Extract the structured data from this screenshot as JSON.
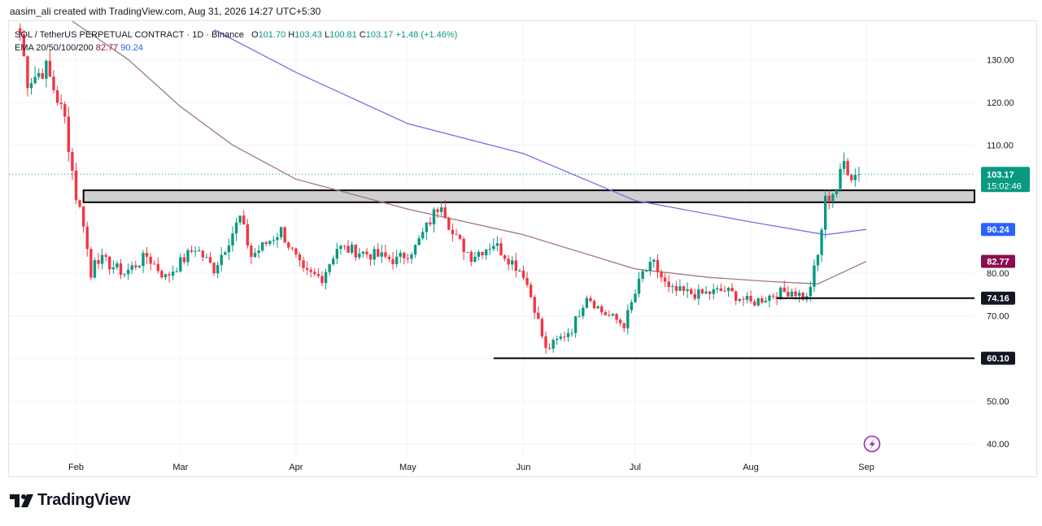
{
  "header": {
    "credit": "aasim_ali created with TradingView.com, Aug 31, 2026 14:27 UTC+5:30"
  },
  "legend": {
    "symbol": "SOL / TetherUS PERPETUAL CONTRACT · 1D · Binance",
    "open_label": "O",
    "open": "101.70",
    "high_label": "H",
    "high": "103.43",
    "low_label": "L",
    "low": "100.81",
    "close_label": "C",
    "close": "103.17",
    "change": "+1.48 (+1.46%)",
    "ema_label": "EMA 20/50/100/200",
    "ema_value_1": "82.77",
    "ema_value_2": "90.24"
  },
  "logo": {
    "text": "TradingView"
  },
  "colors": {
    "up": "#089981",
    "down": "#f23645",
    "ema_purple": "#7e6ee0",
    "ema_maroon": "#a07a7c",
    "zone_fill": "#cfcfcf",
    "level_line": "#000000"
  },
  "chart_data": {
    "type": "candlestick",
    "title": "SOL / TetherUS PERPETUAL CONTRACT · 1D · Binance",
    "x_tick_labels": [
      "Feb",
      "Mar",
      "Apr",
      "May",
      "Jun",
      "Jul",
      "Aug",
      "Sep"
    ],
    "x_ticks": [
      "2026-02-01",
      "2026-03-01",
      "2026-04-01",
      "2026-05-01",
      "2026-06-01",
      "2026-07-01",
      "2026-08-01",
      "2026-09-01"
    ],
    "x_range": [
      "2026-01-14",
      "2026-09-30"
    ],
    "y_ticks": [
      40,
      50,
      60,
      70,
      80,
      110,
      120,
      130
    ],
    "y_tick_labels": [
      "40.00",
      "50.00",
      "60.00",
      "70.00",
      "80.00",
      "110.00",
      "120.00",
      "130.00"
    ],
    "ylim": [
      37,
      139
    ],
    "grid": true,
    "last_price": 103.17,
    "last_price_label": "103.17",
    "countdown": "15:02:46",
    "series": [
      {
        "name": "SOL/USDT",
        "key_points": [
          [
            "2026-01-17",
            136
          ],
          [
            "2026-01-19",
            125
          ],
          [
            "2026-01-24",
            128
          ],
          [
            "2026-01-29",
            116
          ],
          [
            "2026-02-01",
            98
          ],
          [
            "2026-02-03",
            92
          ],
          [
            "2026-02-05",
            79
          ],
          [
            "2026-02-06",
            84
          ],
          [
            "2026-02-14",
            80
          ],
          [
            "2026-02-20",
            84
          ],
          [
            "2026-02-25",
            79
          ],
          [
            "2026-03-05",
            86
          ],
          [
            "2026-03-10",
            81
          ],
          [
            "2026-03-17",
            93
          ],
          [
            "2026-03-20",
            84
          ],
          [
            "2026-03-28",
            90
          ],
          [
            "2026-04-03",
            80
          ],
          [
            "2026-04-08",
            79
          ],
          [
            "2026-04-12",
            86
          ],
          [
            "2026-04-18",
            85
          ],
          [
            "2026-04-28",
            83
          ],
          [
            "2026-05-03",
            86
          ],
          [
            "2026-05-10",
            97
          ],
          [
            "2026-05-13",
            89
          ],
          [
            "2026-05-18",
            84
          ],
          [
            "2026-05-24",
            87
          ],
          [
            "2026-06-01",
            80
          ],
          [
            "2026-06-04",
            72
          ],
          [
            "2026-06-07",
            62
          ],
          [
            "2026-06-14",
            67
          ],
          [
            "2026-06-18",
            75
          ],
          [
            "2026-06-22",
            71
          ],
          [
            "2026-06-28",
            68
          ],
          [
            "2026-07-03",
            80
          ],
          [
            "2026-07-06",
            82
          ],
          [
            "2026-07-10",
            76
          ],
          [
            "2026-07-18",
            75
          ],
          [
            "2026-07-25",
            76
          ],
          [
            "2026-08-01",
            73
          ],
          [
            "2026-08-07",
            75
          ],
          [
            "2026-08-12",
            76
          ],
          [
            "2026-08-16",
            74
          ],
          [
            "2026-08-19",
            84
          ],
          [
            "2026-08-21",
            97
          ],
          [
            "2026-08-24",
            100
          ],
          [
            "2026-08-26",
            106
          ],
          [
            "2026-08-28",
            103
          ],
          [
            "2026-08-30",
            103.2
          ]
        ]
      },
      {
        "name": "EMA",
        "value_label": "90.24",
        "points": [
          [
            "2026-03-10",
            137
          ],
          [
            "2026-04-01",
            127
          ],
          [
            "2026-05-01",
            115
          ],
          [
            "2026-06-01",
            108
          ],
          [
            "2026-07-01",
            97
          ],
          [
            "2026-08-01",
            92
          ],
          [
            "2026-08-21",
            89
          ],
          [
            "2026-09-01",
            90.24
          ]
        ]
      },
      {
        "name": "EMA",
        "value_label": "82.77",
        "points": [
          [
            "2026-01-31",
            139
          ],
          [
            "2026-02-15",
            130
          ],
          [
            "2026-03-01",
            119
          ],
          [
            "2026-03-15",
            110
          ],
          [
            "2026-04-01",
            102
          ],
          [
            "2026-05-01",
            95
          ],
          [
            "2026-06-01",
            89
          ],
          [
            "2026-07-01",
            81
          ],
          [
            "2026-07-21",
            79
          ],
          [
            "2026-08-07",
            78
          ],
          [
            "2026-08-19",
            77.5
          ],
          [
            "2026-09-01",
            82.77
          ]
        ]
      }
    ],
    "zone": {
      "from": "2026-02-03",
      "to": "2026-09-30",
      "low": 96.6,
      "high": 99.4
    },
    "levels": [
      {
        "value": 74.16,
        "label": "74.16",
        "from": "2026-08-08"
      },
      {
        "value": 60.1,
        "label": "60.10",
        "from": "2026-05-24"
      }
    ]
  }
}
